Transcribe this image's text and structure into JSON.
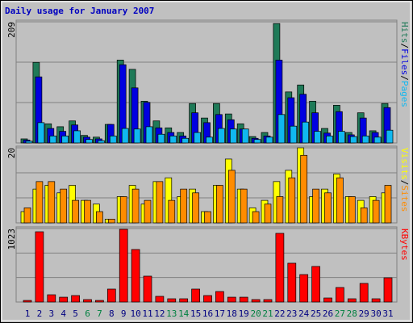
{
  "title": "Daily usage for January 2007",
  "legend_separator": "/",
  "chart_data": [
    {
      "type": "bar",
      "ylim": [
        0,
        209
      ],
      "yticks": [
        209
      ],
      "series": [
        {
          "name": "Hits",
          "color": "#1f7a58",
          "values": [
            7,
            139,
            33,
            28,
            38,
            13,
            10,
            32,
            143,
            127,
            72,
            38,
            26,
            18,
            68,
            43,
            68,
            50,
            33,
            11,
            18,
            206,
            88,
            100,
            72,
            25,
            65,
            18,
            52,
            21,
            68
          ]
        },
        {
          "name": "Files",
          "color": "#0000e0",
          "values": [
            5,
            114,
            25,
            20,
            31,
            10,
            7,
            32,
            135,
            95,
            70,
            26,
            18,
            12,
            52,
            35,
            49,
            40,
            24,
            8,
            12,
            143,
            78,
            84,
            52,
            17,
            54,
            14,
            43,
            18,
            61
          ]
        },
        {
          "name": "Pages",
          "color": "#10b8f0",
          "values": [
            3,
            35,
            12,
            12,
            21,
            6,
            4,
            12,
            25,
            24,
            28,
            15,
            12,
            8,
            18,
            10,
            25,
            24,
            24,
            6,
            10,
            49,
            29,
            36,
            20,
            12,
            20,
            11,
            12,
            10,
            22
          ]
        }
      ]
    },
    {
      "type": "bar",
      "ylim": [
        0,
        20
      ],
      "yticks": [
        20
      ],
      "series": [
        {
          "name": "Visits",
          "color": "#ffff00",
          "values": [
            3,
            9,
            10,
            8,
            10,
            6,
            5,
            1,
            7,
            10,
            5,
            11,
            12,
            7,
            9,
            3,
            10,
            17,
            9,
            4,
            6,
            11,
            14,
            20,
            7,
            9,
            13,
            7,
            6,
            7,
            8
          ]
        },
        {
          "name": "Sites",
          "color": "#ff8c00",
          "values": [
            4,
            11,
            11,
            9,
            6,
            6,
            3,
            1,
            7,
            9,
            6,
            11,
            6,
            9,
            8,
            3,
            10,
            14,
            9,
            3,
            5,
            7,
            12,
            18,
            9,
            8,
            12,
            7,
            4,
            6,
            10
          ]
        }
      ]
    },
    {
      "type": "bar",
      "ylim": [
        0,
        1023
      ],
      "yticks": [
        1023
      ],
      "categories": [
        "1",
        "2",
        "3",
        "4",
        "5",
        "6",
        "7",
        "8",
        "9",
        "10",
        "11",
        "12",
        "13",
        "14",
        "15",
        "16",
        "17",
        "18",
        "19",
        "20",
        "21",
        "22",
        "23",
        "24",
        "25",
        "26",
        "27",
        "28",
        "29",
        "30",
        "31"
      ],
      "category_colors": [
        "#000080",
        "#000080",
        "#000080",
        "#000080",
        "#000080",
        "#008040",
        "#008040",
        "#000080",
        "#000080",
        "#000080",
        "#000080",
        "#000080",
        "#008040",
        "#008040",
        "#000080",
        "#000080",
        "#000080",
        "#000080",
        "#000080",
        "#008040",
        "#008040",
        "#000080",
        "#000080",
        "#000080",
        "#000080",
        "#000080",
        "#008040",
        "#008040",
        "#000080",
        "#000080",
        "#000080"
      ],
      "series": [
        {
          "name": "KBytes",
          "color": "#ff0000",
          "values": [
            22,
            978,
            101,
            67,
            90,
            34,
            22,
            180,
            1012,
            731,
            360,
            79,
            45,
            45,
            180,
            90,
            146,
            67,
            67,
            34,
            34,
            956,
            540,
            382,
            495,
            56,
            202,
            45,
            259,
            45,
            337
          ]
        }
      ]
    }
  ]
}
